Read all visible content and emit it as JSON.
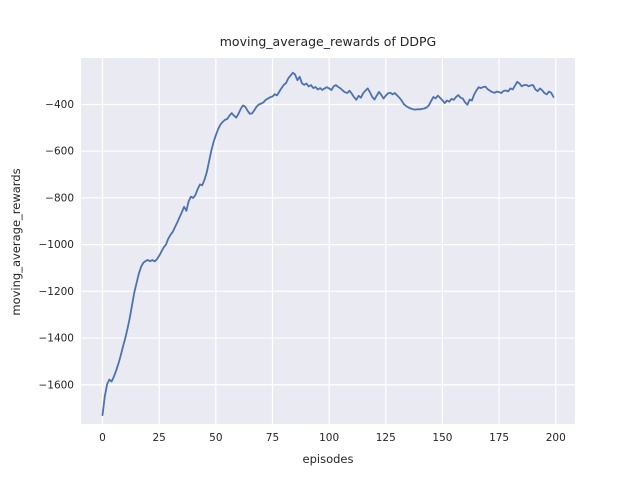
{
  "chart_data": {
    "type": "line",
    "title": "moving_average_rewards of DDPG",
    "xlabel": "episodes",
    "ylabel": "moving_average_rewards",
    "x_ticks": [
      0,
      25,
      50,
      75,
      100,
      125,
      150,
      175,
      200
    ],
    "x_tick_labels": [
      "0",
      "25",
      "50",
      "75",
      "100",
      "125",
      "150",
      "175",
      "200"
    ],
    "y_ticks": [
      -400,
      -600,
      -800,
      -1000,
      -1200,
      -1400,
      -1600
    ],
    "y_tick_labels": [
      "−400",
      "−600",
      "−800",
      "−1000",
      "−1200",
      "−1400",
      "−1600"
    ],
    "xlim": [
      -9.5,
      208.5
    ],
    "ylim": [
      -1768,
      -201
    ],
    "grid": true,
    "legend": "none",
    "series": [
      {
        "name": "moving_average_rewards",
        "x_start": 0,
        "x_step": 1,
        "values": [
          -1730,
          -1650,
          -1598,
          -1578,
          -1586,
          -1565,
          -1540,
          -1510,
          -1475,
          -1438,
          -1402,
          -1360,
          -1315,
          -1260,
          -1205,
          -1165,
          -1125,
          -1095,
          -1078,
          -1070,
          -1066,
          -1071,
          -1066,
          -1072,
          -1063,
          -1048,
          -1030,
          -1012,
          -1000,
          -975,
          -958,
          -945,
          -925,
          -905,
          -882,
          -862,
          -838,
          -855,
          -815,
          -795,
          -800,
          -788,
          -762,
          -742,
          -746,
          -722,
          -690,
          -645,
          -598,
          -560,
          -532,
          -506,
          -486,
          -475,
          -466,
          -462,
          -448,
          -437,
          -448,
          -456,
          -440,
          -418,
          -404,
          -410,
          -427,
          -440,
          -438,
          -424,
          -409,
          -400,
          -396,
          -391,
          -380,
          -375,
          -369,
          -366,
          -356,
          -361,
          -345,
          -330,
          -316,
          -308,
          -288,
          -276,
          -264,
          -272,
          -296,
          -281,
          -309,
          -316,
          -310,
          -323,
          -317,
          -330,
          -325,
          -336,
          -330,
          -338,
          -331,
          -326,
          -331,
          -338,
          -322,
          -317,
          -325,
          -331,
          -340,
          -348,
          -351,
          -341,
          -354,
          -369,
          -380,
          -363,
          -371,
          -352,
          -341,
          -331,
          -347,
          -367,
          -379,
          -362,
          -346,
          -359,
          -375,
          -362,
          -352,
          -350,
          -357,
          -351,
          -361,
          -371,
          -383,
          -399,
          -407,
          -413,
          -417,
          -420,
          -422,
          -420,
          -421,
          -419,
          -417,
          -413,
          -404,
          -385,
          -368,
          -374,
          -362,
          -372,
          -382,
          -394,
          -383,
          -388,
          -376,
          -380,
          -368,
          -360,
          -371,
          -375,
          -391,
          -401,
          -379,
          -383,
          -357,
          -340,
          -326,
          -330,
          -325,
          -324,
          -335,
          -341,
          -347,
          -350,
          -345,
          -347,
          -351,
          -342,
          -340,
          -344,
          -331,
          -336,
          -320,
          -303,
          -310,
          -322,
          -317,
          -316,
          -322,
          -318,
          -317,
          -335,
          -343,
          -331,
          -339,
          -351,
          -357,
          -345,
          -350,
          -368
        ]
      }
    ],
    "colors": {
      "line": "#4C72B0",
      "plot_background": "#EAEAF2",
      "gridline": "#FFFFFF",
      "text": "#262626",
      "figure_background": "#FFFFFF"
    }
  }
}
